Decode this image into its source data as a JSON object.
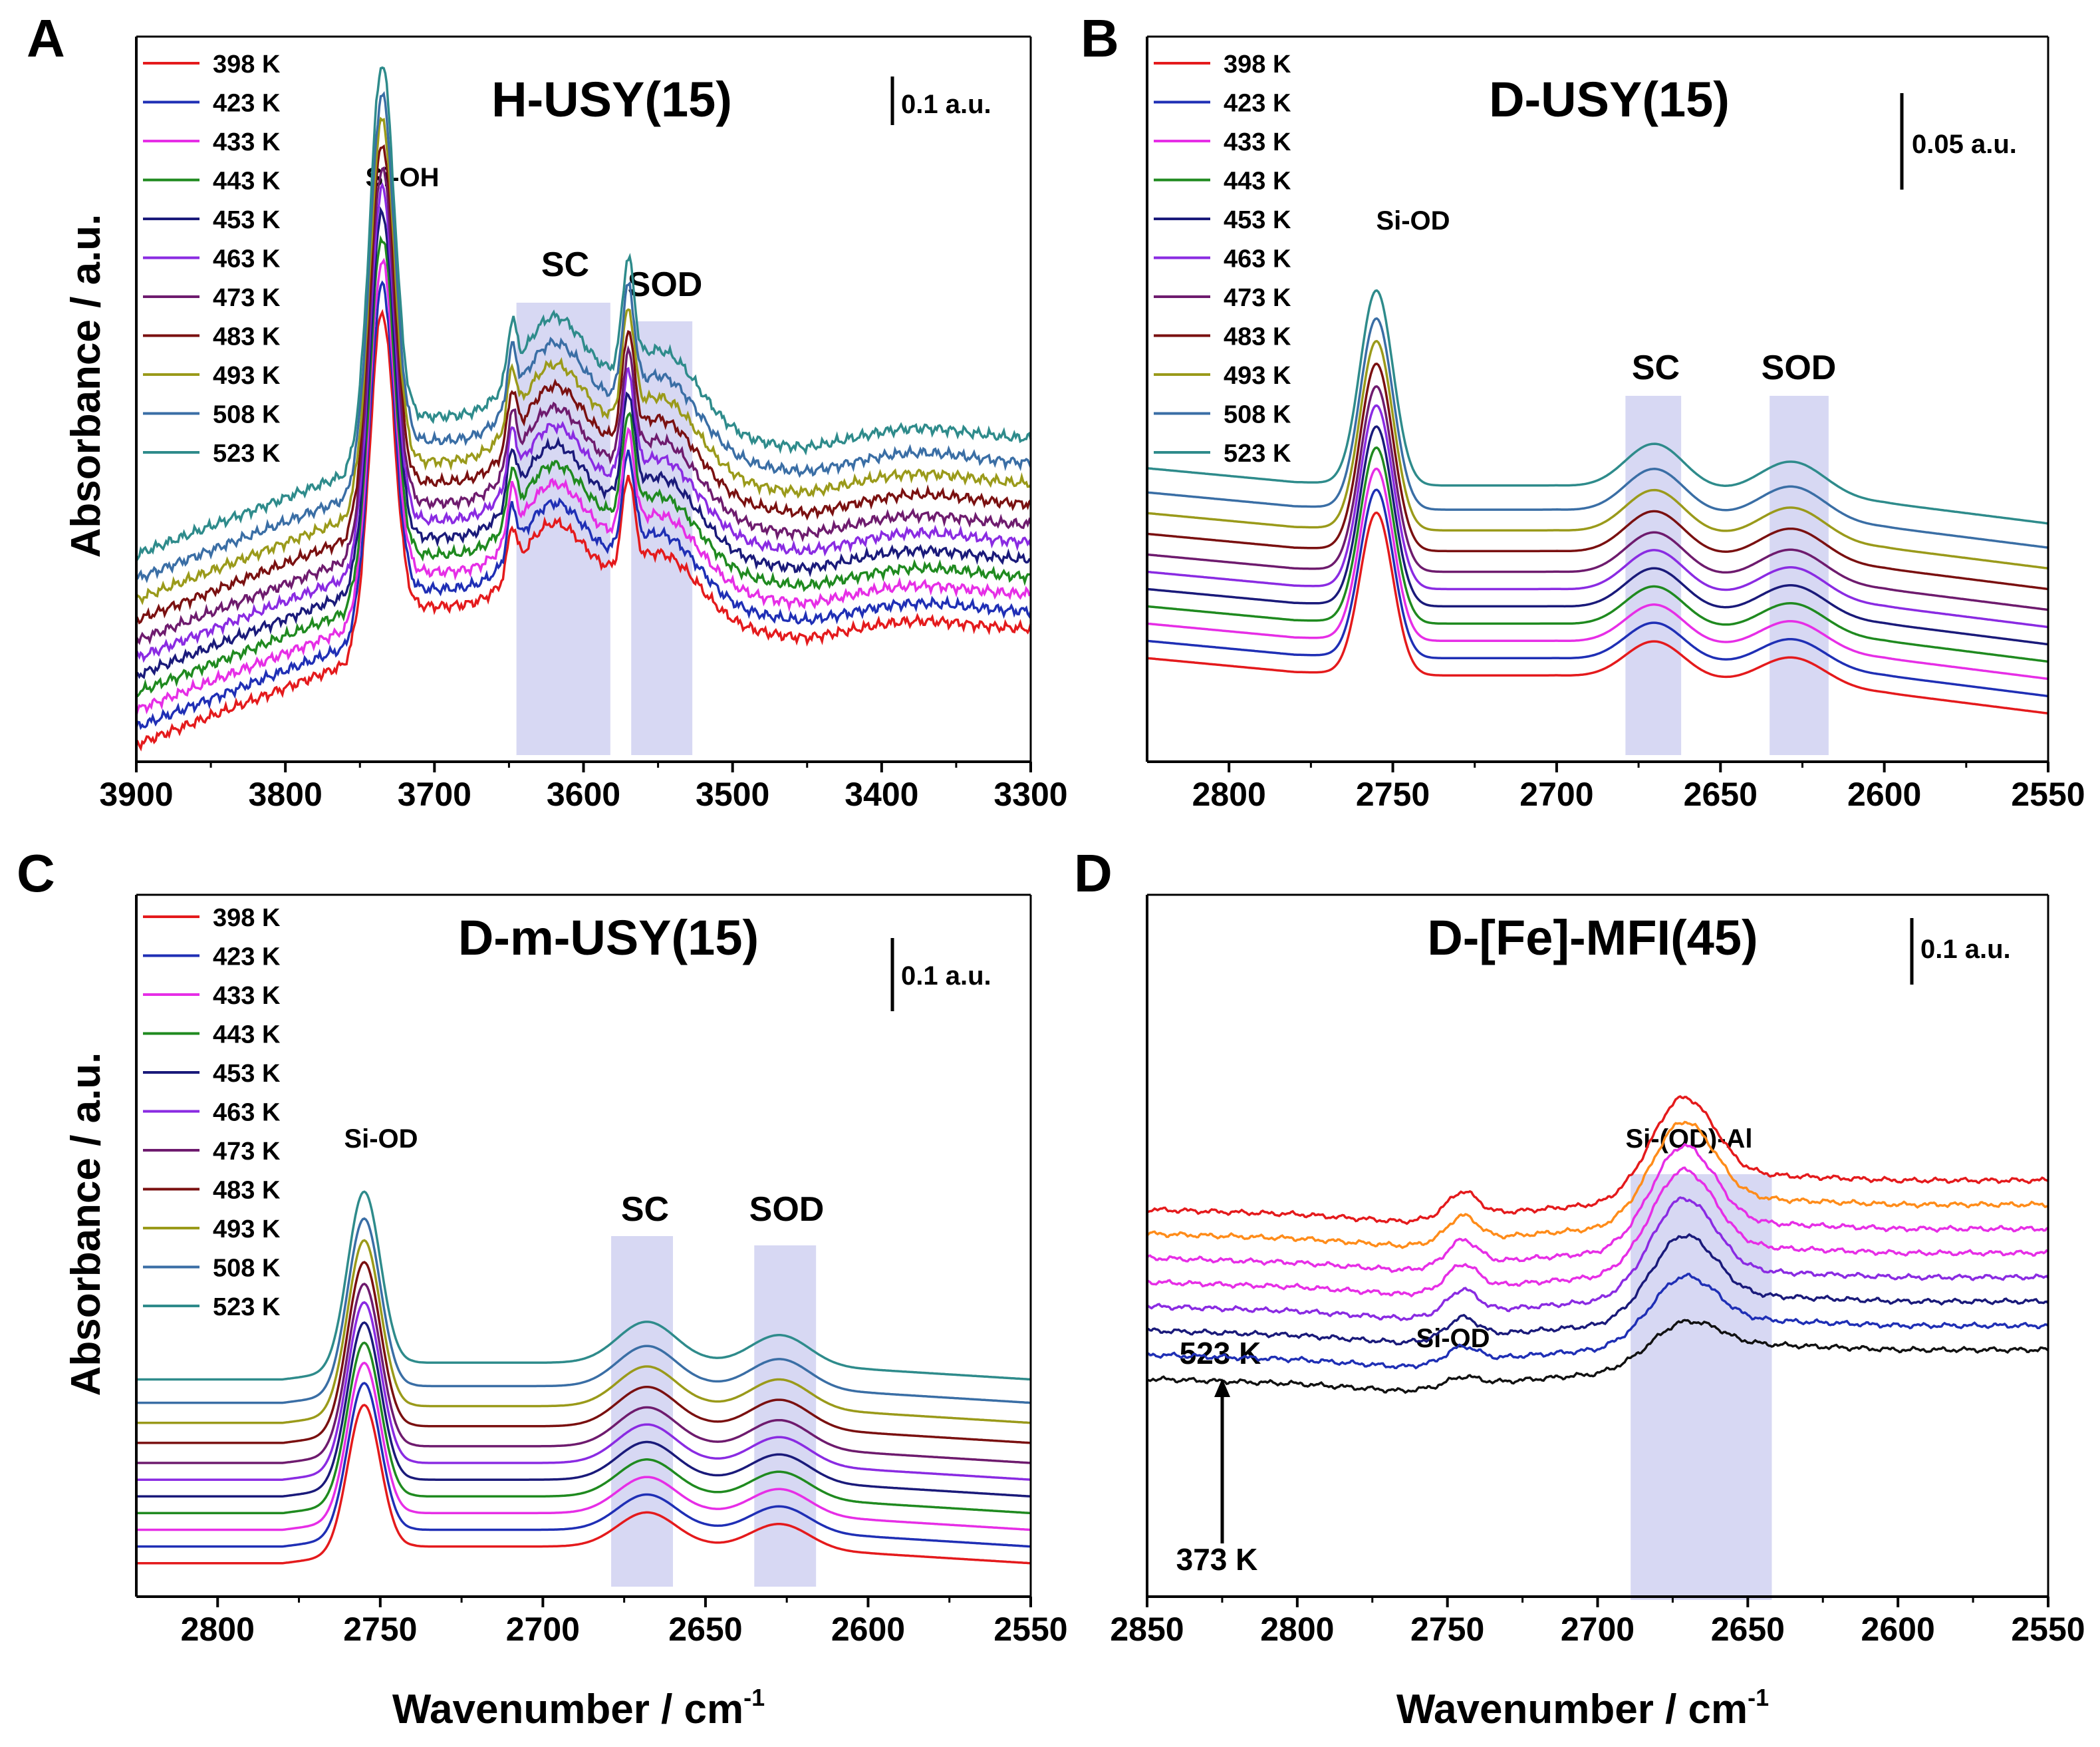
{
  "ylabel": "Absorbance / a.u.",
  "xlabel": "Wavenumber / cm",
  "xlabel_sup": "-1",
  "legend_temps": [
    "398 K",
    "423 K",
    "433 K",
    "443 K",
    "453 K",
    "463 K",
    "473 K",
    "483 K",
    "493 K",
    "508 K",
    "523 K"
  ],
  "colors": {
    "series": [
      "#e41a1c",
      "#1f2fb5",
      "#e62ee6",
      "#1f8a1f",
      "#1a1a7a",
      "#8a2be2",
      "#6e1b6e",
      "#7a1010",
      "#9a9a1a",
      "#3a6ea5",
      "#2e8b8b"
    ],
    "d_series": [
      "#111111",
      "#1f2fb5",
      "#1a1a7a",
      "#8a2be2",
      "#e62ee6",
      "#e62ee6",
      "#ff8c1a",
      "#e41a1c"
    ],
    "band": "#c9cbef"
  },
  "chart_data": [
    {
      "panel": "A",
      "type": "line",
      "title": "H-USY(15)",
      "xlim": [
        3900,
        3300
      ],
      "xticks": [
        3900,
        3800,
        3700,
        3600,
        3500,
        3400,
        3300
      ],
      "scale_bar": "0.1 a.u.",
      "annotations": [
        "Si-OH",
        "SC",
        "SOD"
      ],
      "bands": [
        [
          3645,
          3582
        ],
        [
          3568,
          3527
        ]
      ],
      "peaks": [
        [
          3735,
          1.0,
          8
        ],
        [
          3648,
          0.15,
          3
        ],
        [
          3620,
          0.28,
          22
        ],
        [
          3570,
          0.3,
          4
        ],
        [
          3548,
          0.22,
          25
        ],
        [
          3380,
          0.05,
          40
        ]
      ],
      "baseline": {
        "x": [
          3900,
          3760,
          3740,
          3600,
          3450,
          3300
        ],
        "y": [
          0.05,
          0.28,
          0.45,
          0.45,
          0.35,
          0.38
        ]
      },
      "series": [
        {
          "name": "398 K",
          "offset": 0.0,
          "scale": 0.85
        },
        {
          "name": "423 K",
          "offset": 0.05,
          "scale": 0.88
        },
        {
          "name": "433 K",
          "offset": 0.1,
          "scale": 0.9
        },
        {
          "name": "443 K",
          "offset": 0.15,
          "scale": 0.92
        },
        {
          "name": "453 K",
          "offset": 0.2,
          "scale": 0.94
        },
        {
          "name": "463 K",
          "offset": 0.25,
          "scale": 0.96
        },
        {
          "name": "473 K",
          "offset": 0.3,
          "scale": 0.97
        },
        {
          "name": "483 K",
          "offset": 0.36,
          "scale": 0.98
        },
        {
          "name": "493 K",
          "offset": 0.42,
          "scale": 0.99
        },
        {
          "name": "508 K",
          "offset": 0.48,
          "scale": 1.0
        },
        {
          "name": "523 K",
          "offset": 0.55,
          "scale": 1.02
        }
      ]
    },
    {
      "panel": "B",
      "type": "line",
      "title": "D-USY(15)",
      "xlim": [
        2825,
        2550
      ],
      "xticks": [
        2800,
        2750,
        2700,
        2650,
        2600,
        2550
      ],
      "scale_bar": "0.05 a.u.",
      "annotations": [
        "Si-OD",
        "SC",
        "SOD"
      ],
      "bands": [
        [
          2679,
          2662
        ],
        [
          2635,
          2617
        ]
      ],
      "peaks": [
        [
          2755,
          0.55,
          5
        ],
        [
          2670,
          0.13,
          9
        ],
        [
          2628,
          0.1,
          10
        ]
      ],
      "baseline": {
        "x": [
          2825,
          2780,
          2740,
          2700,
          2650,
          2600,
          2550
        ],
        "y": [
          0.1,
          0.06,
          0.05,
          0.05,
          0.03,
          0.0,
          -0.06
        ]
      },
      "series": [
        {
          "name": "398 K",
          "offset": 0.0,
          "scale": 0.85
        },
        {
          "name": "423 K",
          "offset": 0.05,
          "scale": 0.88
        },
        {
          "name": "433 K",
          "offset": 0.1,
          "scale": 0.9
        },
        {
          "name": "443 K",
          "offset": 0.15,
          "scale": 0.92
        },
        {
          "name": "453 K",
          "offset": 0.2,
          "scale": 0.94
        },
        {
          "name": "463 K",
          "offset": 0.25,
          "scale": 0.96
        },
        {
          "name": "473 K",
          "offset": 0.3,
          "scale": 0.97
        },
        {
          "name": "483 K",
          "offset": 0.36,
          "scale": 0.98
        },
        {
          "name": "493 K",
          "offset": 0.42,
          "scale": 0.99
        },
        {
          "name": "508 K",
          "offset": 0.48,
          "scale": 1.0
        },
        {
          "name": "523 K",
          "offset": 0.55,
          "scale": 1.02
        }
      ]
    },
    {
      "panel": "C",
      "type": "line",
      "title": "D-m-USY(15)",
      "xlim": [
        2825,
        2550
      ],
      "xticks": [
        2800,
        2750,
        2700,
        2650,
        2600,
        2550
      ],
      "scale_bar": "0.1 a.u.",
      "annotations": [
        "Si-OD",
        "SC",
        "SOD"
      ],
      "bands": [
        [
          2679,
          2660
        ],
        [
          2635,
          2616
        ]
      ],
      "peaks": [
        [
          2755,
          0.52,
          5
        ],
        [
          2668,
          0.12,
          9
        ],
        [
          2627,
          0.09,
          9
        ]
      ],
      "baseline": {
        "x": [
          2825,
          2780,
          2740,
          2700,
          2650,
          2600,
          2550
        ],
        "y": [
          0.0,
          0.0,
          0.05,
          0.05,
          0.05,
          0.03,
          0.0
        ]
      },
      "series": [
        {
          "name": "398 K",
          "offset": 0.0,
          "scale": 0.85
        },
        {
          "name": "423 K",
          "offset": 0.05,
          "scale": 0.88
        },
        {
          "name": "433 K",
          "offset": 0.1,
          "scale": 0.9
        },
        {
          "name": "443 K",
          "offset": 0.15,
          "scale": 0.92
        },
        {
          "name": "453 K",
          "offset": 0.2,
          "scale": 0.94
        },
        {
          "name": "463 K",
          "offset": 0.25,
          "scale": 0.96
        },
        {
          "name": "473 K",
          "offset": 0.3,
          "scale": 0.97
        },
        {
          "name": "483 K",
          "offset": 0.36,
          "scale": 0.98
        },
        {
          "name": "493 K",
          "offset": 0.42,
          "scale": 0.99
        },
        {
          "name": "508 K",
          "offset": 0.48,
          "scale": 1.0
        },
        {
          "name": "523 K",
          "offset": 0.55,
          "scale": 1.02
        }
      ]
    },
    {
      "panel": "D",
      "type": "line",
      "title": "D-[Fe]-MFI(45)",
      "xlim": [
        2850,
        2550
      ],
      "xticks": [
        2850,
        2800,
        2750,
        2700,
        2650,
        2600,
        2550
      ],
      "scale_bar": "0.1 a.u.",
      "annotations": [
        "Si-OD",
        "Si-(OD)-Al"
      ],
      "temp_range": [
        "523 K",
        "373 K"
      ],
      "bands": [
        [
          2689,
          2642
        ]
      ],
      "peaks": [
        [
          2745,
          0.1,
          5
        ],
        [
          2672,
          0.35,
          10
        ]
      ],
      "baseline": {
        "x": [
          2850,
          2800,
          2765,
          2740,
          2700,
          2660,
          2600,
          2550
        ],
        "y": [
          0.0,
          -0.02,
          -0.05,
          -0.02,
          0.02,
          0.15,
          0.12,
          0.12
        ]
      },
      "series": [
        {
          "name": "373 K",
          "offset": 0.0,
          "scale": 0.35
        },
        {
          "name": "",
          "offset": 0.1,
          "scale": 0.6
        },
        {
          "name": "",
          "offset": 0.2,
          "scale": 0.8
        },
        {
          "name": "",
          "offset": 0.3,
          "scale": 0.95
        },
        {
          "name": "",
          "offset": 0.4,
          "scale": 1.0
        },
        {
          "name": "",
          "offset": 0.5,
          "scale": 1.0
        },
        {
          "name": "",
          "offset": 0.6,
          "scale": 1.0
        },
        {
          "name": "523 K",
          "offset": 0.7,
          "scale": 1.0
        }
      ]
    }
  ]
}
